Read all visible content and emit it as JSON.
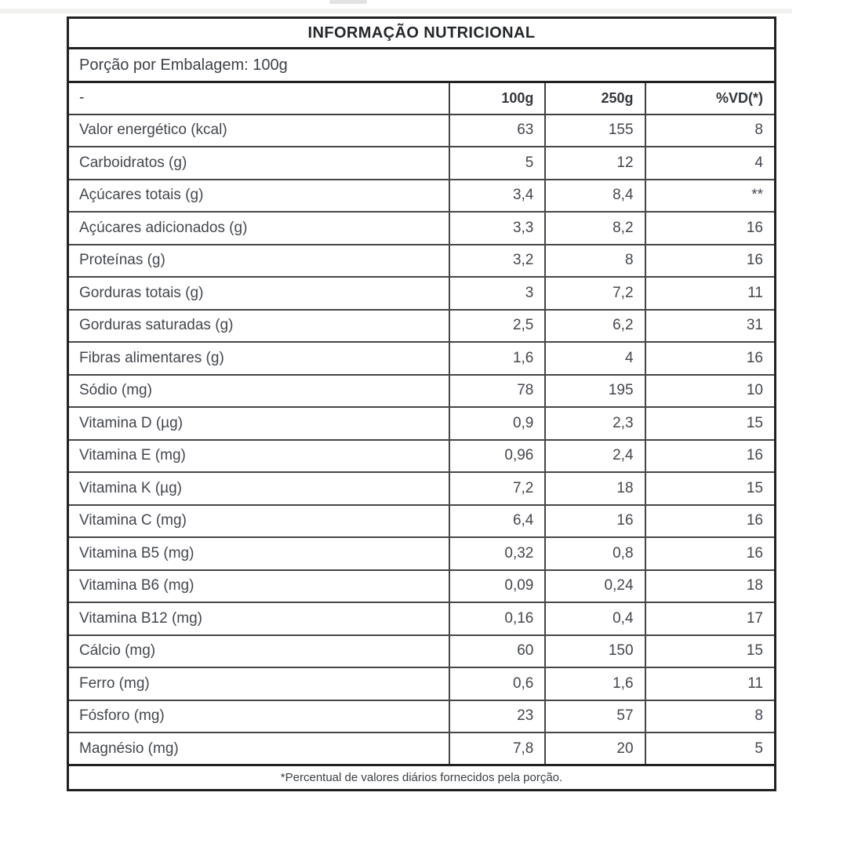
{
  "table": {
    "title": "INFORMAÇÃO NUTRICIONAL",
    "serving_info": "Porção por Embalagem: 100g",
    "columns": [
      "-",
      "100g",
      "250g",
      "%VD(*)"
    ],
    "rows": [
      {
        "label": "Valor energético (kcal)",
        "per100": "63",
        "per250": "155",
        "vd": "8"
      },
      {
        "label": "Carboidratos (g)",
        "per100": "5",
        "per250": "12",
        "vd": "4"
      },
      {
        "label": "Açúcares totais (g)",
        "per100": "3,4",
        "per250": "8,4",
        "vd": "**"
      },
      {
        "label": "Açúcares adicionados (g)",
        "per100": "3,3",
        "per250": "8,2",
        "vd": "16"
      },
      {
        "label": "Proteínas (g)",
        "per100": "3,2",
        "per250": "8",
        "vd": "16"
      },
      {
        "label": "Gorduras totais (g)",
        "per100": "3",
        "per250": "7,2",
        "vd": "11"
      },
      {
        "label": "Gorduras saturadas (g)",
        "per100": "2,5",
        "per250": "6,2",
        "vd": "31"
      },
      {
        "label": "Fibras alimentares (g)",
        "per100": "1,6",
        "per250": "4",
        "vd": "16"
      },
      {
        "label": "Sódio (mg)",
        "per100": "78",
        "per250": "195",
        "vd": "10"
      },
      {
        "label": "Vitamina D (µg)",
        "per100": "0,9",
        "per250": "2,3",
        "vd": "15"
      },
      {
        "label": "Vitamina E (mg)",
        "per100": "0,96",
        "per250": "2,4",
        "vd": "16"
      },
      {
        "label": "Vitamina K (µg)",
        "per100": "7,2",
        "per250": "18",
        "vd": "15"
      },
      {
        "label": "Vitamina C (mg)",
        "per100": "6,4",
        "per250": "16",
        "vd": "16"
      },
      {
        "label": "Vitamina B5 (mg)",
        "per100": "0,32",
        "per250": "0,8",
        "vd": "16"
      },
      {
        "label": "Vitamina B6 (mg)",
        "per100": "0,09",
        "per250": "0,24",
        "vd": "18"
      },
      {
        "label": "Vitamina B12 (mg)",
        "per100": "0,16",
        "per250": "0,4",
        "vd": "17"
      },
      {
        "label": "Cálcio (mg)",
        "per100": "60",
        "per250": "150",
        "vd": "15"
      },
      {
        "label": "Ferro (mg)",
        "per100": "0,6",
        "per250": "1,6",
        "vd": "11"
      },
      {
        "label": "Fósforo (mg)",
        "per100": "23",
        "per250": "57",
        "vd": "8"
      },
      {
        "label": "Magnésio (mg)",
        "per100": "7,8",
        "per250": "20",
        "vd": "5"
      }
    ],
    "footnote": "*Percentual de valores diários fornecidos pela porção."
  }
}
